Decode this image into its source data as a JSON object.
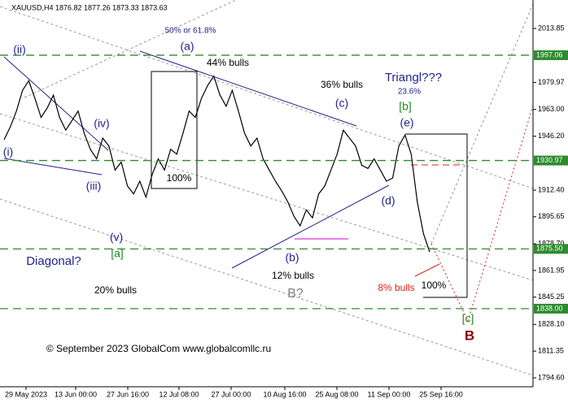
{
  "chart_data": {
    "type": "line",
    "title": "XAUUSD,H4  1876.82 1877.26 1873.33 1873.63",
    "x_labels": [
      "29 May 2023",
      "13 Jun 00:00",
      "27 Jun 16:00",
      "12 Jul 08:00",
      "27 Jul 00:00",
      "10 Aug 16:00",
      "25 Aug 08:00",
      "11 Sep 00:00",
      "25 Sep 16:00"
    ],
    "series": [
      {
        "color": "#000000",
        "values": [
          1944,
          1952,
          1962,
          1975,
          1981,
          1970,
          1958,
          1964,
          1972,
          1958,
          1950,
          1956,
          1962,
          1948,
          1938,
          1932,
          1945,
          1940,
          1925,
          1930,
          1915,
          1910,
          1918,
          1908,
          1922,
          1932,
          1925,
          1938,
          1935,
          1948,
          1962,
          1958,
          1970,
          1978,
          1984,
          1972,
          1965,
          1975,
          1962,
          1948,
          1940,
          1945,
          1932,
          1925,
          1918,
          1912,
          1905,
          1896,
          1890,
          1900,
          1895,
          1910,
          1915,
          1925,
          1935,
          1950,
          1945,
          1940,
          1928,
          1926,
          1932,
          1925,
          1918,
          1920,
          1940,
          1947,
          1935,
          1905,
          1885,
          1873.63
        ]
      }
    ],
    "ylim": [
      1789.0,
      2031.7
    ],
    "yticks": [
      2013.85,
      1979.97,
      {
        "value": 1963.0,
        "label": "1963.00"
      },
      {
        "value": 1946.2,
        "label": "1946.20"
      },
      {
        "value": 1912.4,
        "label": "1912.40"
      },
      1895.65,
      {
        "value": 1878.7,
        "label": "1878.70"
      },
      1861.95,
      1845.25,
      {
        "value": 1828.1,
        "label": "1828.10"
      },
      1811.35,
      {
        "value": 1794.6,
        "label": "1794.60"
      }
    ],
    "levels": [
      1997.06,
      1930.97,
      {
        "value": 1875.5,
        "label": "1875.50"
      },
      {
        "value": 1838.0,
        "label": "1838.00"
      }
    ],
    "level_color": "#2e8b2e",
    "annotations": [
      "50% or 61.8%",
      "(a)",
      "44% bulls",
      "(ii)",
      "36% bulls",
      "Triangl???",
      "23.6%",
      "(c)",
      "[b]",
      "(e)",
      "(iv)",
      "(i)",
      "(iii)",
      "100%",
      "(d)",
      "(v)",
      "[a]",
      "Diagonal?",
      "(b)",
      "12% bulls",
      "B?",
      "20% bulls",
      "8% bulls",
      "100%",
      "[c]",
      "B",
      "© September 2023 GlobalCom www.globalcomllc.ru"
    ]
  }
}
